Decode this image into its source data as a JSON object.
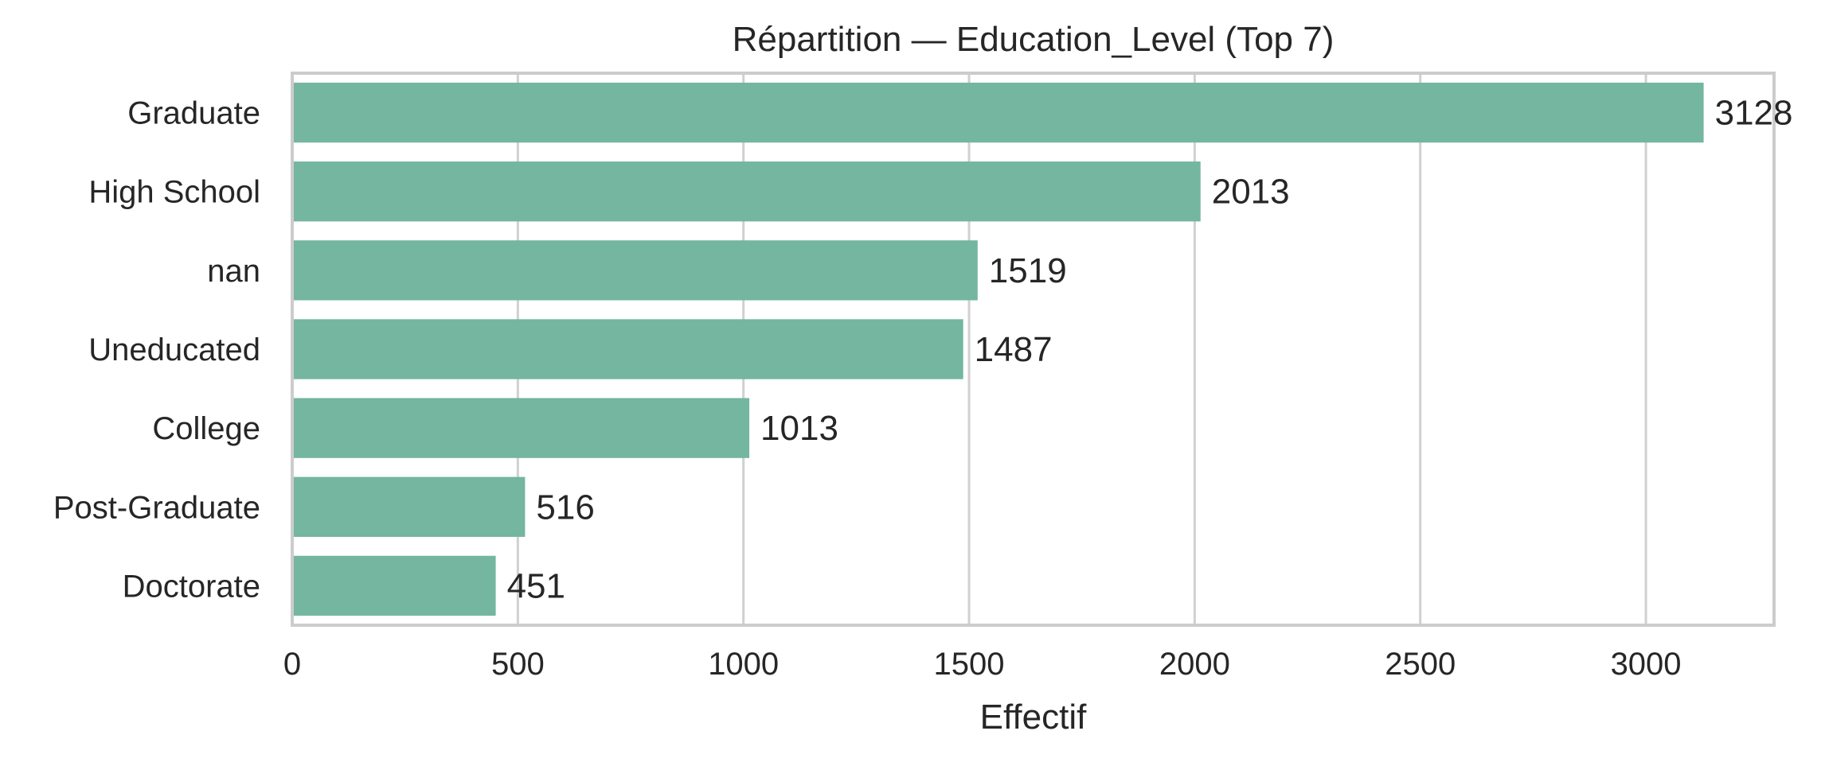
{
  "chart_data": {
    "type": "bar",
    "orientation": "horizontal",
    "title": "Répartition — Education_Level (Top 7)",
    "xlabel": "Effectif",
    "ylabel": "",
    "categories": [
      "Graduate",
      "High School",
      "nan",
      "Uneducated",
      "College",
      "Post-Graduate",
      "Doctorate"
    ],
    "values": [
      3128,
      2013,
      1519,
      1487,
      1013,
      516,
      451
    ],
    "xlim": [
      0,
      3284
    ],
    "xticks": [
      0,
      500,
      1000,
      1500,
      2000,
      2500,
      3000
    ],
    "grid": "x",
    "show_value_labels": true,
    "bar_color": "#74b6a0"
  }
}
